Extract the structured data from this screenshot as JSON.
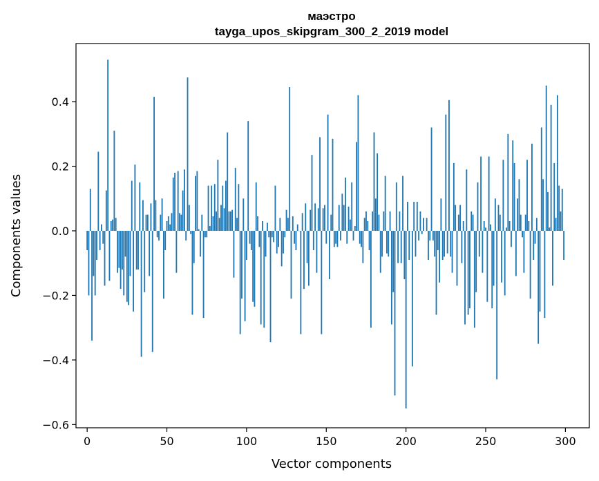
{
  "chart_data": {
    "type": "bar",
    "title_line1": "маэстро",
    "title_line2": "tayga_upos_skipgram_300_2_2019 model",
    "xlabel": "Vector components",
    "ylabel": "Components values",
    "xlim": [
      -7,
      315
    ],
    "ylim": [
      -0.61,
      0.58
    ],
    "xticks": [
      0,
      50,
      100,
      150,
      200,
      250,
      300
    ],
    "xtick_labels": [
      "0",
      "50",
      "100",
      "150",
      "200",
      "250",
      "300"
    ],
    "yticks": [
      -0.6,
      -0.4,
      -0.2,
      0.0,
      0.2,
      0.4
    ],
    "ytick_labels": [
      "−0.6",
      "−0.4",
      "−0.2",
      "0.0",
      "0.2",
      "0.4"
    ],
    "bar_color": "#1f77b4",
    "values": [
      -0.06,
      -0.2,
      0.13,
      -0.34,
      -0.14,
      -0.2,
      -0.09,
      0.245,
      -0.06,
      0.02,
      -0.04,
      -0.17,
      0.125,
      0.53,
      -0.155,
      0.03,
      0.035,
      0.31,
      0.04,
      -0.13,
      -0.115,
      -0.18,
      -0.12,
      -0.2,
      -0.08,
      -0.22,
      -0.23,
      -0.14,
      0.155,
      -0.25,
      0.205,
      -0.12,
      -0.12,
      0.15,
      -0.39,
      0.095,
      -0.19,
      0.05,
      0.05,
      -0.14,
      0.085,
      -0.375,
      0.415,
      0.095,
      -0.02,
      -0.03,
      0.05,
      0.1,
      -0.21,
      -0.06,
      0.03,
      0.045,
      0.02,
      0.055,
      0.165,
      0.18,
      -0.13,
      0.185,
      0.055,
      0.05,
      0.125,
      0.19,
      -0.03,
      0.475,
      0.08,
      -0.01,
      -0.26,
      -0.1,
      0.17,
      0.185,
      0.005,
      -0.08,
      0.05,
      -0.27,
      -0.02,
      -0.02,
      0.14,
      0.015,
      0.14,
      0.045,
      0.145,
      0.06,
      0.22,
      0.04,
      0.08,
      0.14,
      0.07,
      0.155,
      0.305,
      0.06,
      0.06,
      0.065,
      -0.145,
      0.195,
      0.04,
      0.145,
      -0.32,
      -0.21,
      0.1,
      -0.28,
      -0.09,
      0.34,
      -0.04,
      -0.06,
      -0.22,
      -0.235,
      0.15,
      0.045,
      -0.05,
      -0.29,
      0.03,
      -0.3,
      -0.08,
      0.025,
      -0.02,
      -0.345,
      -0.02,
      -0.035,
      0.14,
      -0.07,
      -0.05,
      0.04,
      -0.11,
      -0.07,
      -0.02,
      0.065,
      0.04,
      0.445,
      -0.21,
      0.045,
      -0.04,
      -0.06,
      0.02,
      0.0,
      -0.32,
      0.055,
      -0.18,
      0.085,
      -0.1,
      -0.17,
      0.065,
      0.235,
      -0.06,
      0.085,
      -0.13,
      0.07,
      0.29,
      -0.32,
      0.07,
      0.08,
      -0.04,
      0.36,
      -0.15,
      0.05,
      0.285,
      -0.05,
      -0.04,
      -0.05,
      0.08,
      -0.03,
      0.115,
      0.08,
      0.165,
      -0.04,
      0.075,
      0.035,
      0.15,
      -0.03,
      0.015,
      0.275,
      0.42,
      -0.04,
      -0.05,
      -0.1,
      0.04,
      0.06,
      0.03,
      -0.06,
      -0.3,
      0.06,
      0.305,
      0.1,
      0.24,
      0.05,
      -0.13,
      -0.08,
      0.06,
      0.17,
      -0.07,
      -0.08,
      0.06,
      -0.29,
      -0.19,
      -0.51,
      0.15,
      -0.1,
      0.06,
      -0.1,
      0.17,
      -0.15,
      -0.55,
      0.09,
      -0.09,
      0.0,
      -0.42,
      0.09,
      -0.08,
      0.09,
      -0.03,
      0.06,
      -0.01,
      0.04,
      0.0,
      0.04,
      -0.09,
      -0.03,
      0.32,
      -0.03,
      -0.08,
      -0.26,
      -0.06,
      -0.16,
      0.1,
      -0.09,
      -0.08,
      0.36,
      -0.07,
      0.405,
      -0.08,
      -0.13,
      0.21,
      0.08,
      -0.17,
      0.05,
      0.08,
      -0.1,
      0.03,
      -0.29,
      0.19,
      -0.26,
      -0.24,
      0.06,
      0.05,
      -0.3,
      -0.19,
      0.15,
      -0.08,
      0.23,
      -0.13,
      0.03,
      0.01,
      -0.22,
      0.23,
      0.02,
      -0.24,
      -0.17,
      0.1,
      -0.46,
      0.08,
      0.05,
      -0.16,
      0.22,
      -0.2,
      0.01,
      0.3,
      0.03,
      -0.05,
      0.28,
      0.21,
      -0.14,
      0.1,
      0.16,
      0.05,
      -0.02,
      -0.13,
      0.05,
      0.22,
      0.03,
      -0.21,
      0.27,
      -0.09,
      -0.04,
      0.04,
      -0.35,
      -0.25,
      0.32,
      0.16,
      -0.27,
      0.45,
      0.12,
      0.01,
      0.39,
      -0.17,
      0.21,
      0.04,
      0.42,
      0.14,
      0.06,
      0.13,
      -0.09
    ]
  }
}
